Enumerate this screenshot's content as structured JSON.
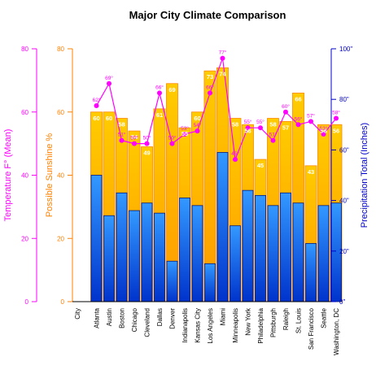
{
  "chart_data": {
    "type": "bar",
    "title": "Major City Climate Comparison",
    "categories": [
      "Atlanta",
      "Austin",
      "Boston",
      "Chicago",
      "Cleveland",
      "Dallas",
      "Denver",
      "Indianapolis",
      "Kansas City",
      "Los Angeles",
      "Miami",
      "Minneapolis",
      "New York",
      "Philadelphia",
      "Pittsburgh",
      "Raleigh",
      "St. Louis",
      "San Francisco",
      "Seattle",
      "Washington, DC"
    ],
    "category_axis_label": "City",
    "axes": {
      "temperature": {
        "label": "Temperature F° (Mean)",
        "range": [
          0,
          80
        ],
        "ticks": [
          "0",
          "20",
          "40",
          "60",
          "80"
        ],
        "color": "#ff00ff"
      },
      "sunshine": {
        "label": "Possible Sunshine %",
        "range": [
          0,
          80
        ],
        "ticks": [
          "0",
          "20",
          "40",
          "60",
          "80"
        ],
        "color": "#ff8000"
      },
      "precipitation": {
        "label": "Precipitation Total (Inches)",
        "range": [
          0,
          100
        ],
        "ticks": [
          "0\"",
          "20\"",
          "40\"",
          "60\"",
          "80\"",
          "100\""
        ],
        "color": "#0000cc"
      }
    },
    "series": [
      {
        "name": "Possible Sunshine %",
        "kind": "bar",
        "axis": "sunshine",
        "color_top": "#ffcc00",
        "color_bottom": "#ff9900",
        "values": [
          60,
          60,
          58,
          54,
          49,
          61,
          69,
          55,
          60,
          73,
          74,
          58,
          56,
          45,
          58,
          57,
          66,
          43,
          56,
          56
        ],
        "labels": [
          "60",
          "60",
          "58",
          "54",
          "49",
          "61",
          "69",
          "55",
          "60",
          "73",
          "74",
          "58",
          "56",
          "45",
          "58",
          "57",
          "66",
          "43",
          "56",
          "56"
        ]
      },
      {
        "name": "Precipitation Total (Inches)",
        "kind": "bar",
        "axis": "precipitation",
        "color_top": "#3399ff",
        "color_bottom": "#0033cc",
        "values": [
          50,
          34,
          43,
          36,
          39,
          35,
          16,
          41,
          38,
          15,
          59,
          30,
          44,
          42,
          38,
          43,
          39,
          23,
          38,
          39
        ]
      },
      {
        "name": "Temperature F° (Mean)",
        "kind": "line",
        "axis": "temperature",
        "color": "#ff00ff",
        "values": [
          62,
          69,
          51,
          50,
          50,
          66,
          50,
          53,
          54,
          66,
          77,
          45,
          55,
          55,
          51,
          60,
          56,
          57,
          53,
          58
        ],
        "labels": [
          "62°",
          "69°",
          "51°",
          "50°",
          "50°",
          "66°",
          "50°",
          "53°",
          "54°",
          "66°",
          "77°",
          "45°",
          "55°",
          "55°",
          "51°",
          "60°",
          "56°",
          "57°",
          "53°",
          "58°"
        ]
      }
    ],
    "grid": false,
    "legend": "none"
  }
}
